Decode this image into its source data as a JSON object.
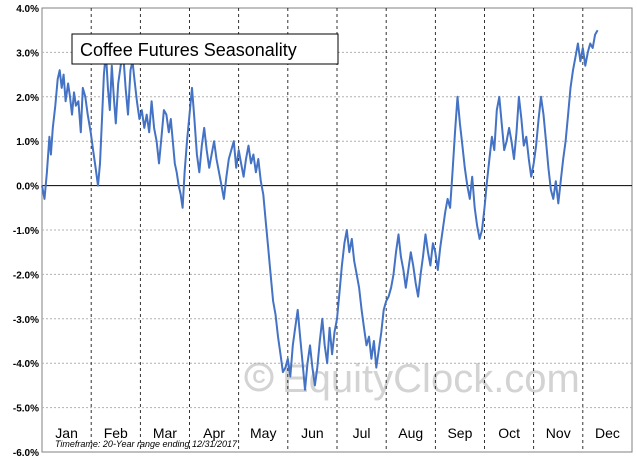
{
  "chart_data": {
    "type": "line",
    "title": "Coffee Futures Seasonality",
    "xlabel": "",
    "ylabel": "",
    "ylim": [
      -6.0,
      4.0
    ],
    "y_ticks": [
      "4.0%",
      "3.0%",
      "2.0%",
      "1.0%",
      "0.0%",
      "-1.0%",
      "-2.0%",
      "-3.0%",
      "-4.0%",
      "-5.0%",
      "-6.0%"
    ],
    "y_tick_values": [
      4,
      3,
      2,
      1,
      0,
      -1,
      -2,
      -3,
      -4,
      -5,
      -6
    ],
    "categories": [
      "Jan",
      "Feb",
      "Mar",
      "Apr",
      "May",
      "Jun",
      "Jul",
      "Aug",
      "Sep",
      "Oct",
      "Nov",
      "Dec"
    ],
    "x_unit": "month (0 = Jan 1, 12 = Dec 31)",
    "grid": true,
    "series": [
      {
        "color": "#4472c4",
        "points": [
          [
            0.0,
            0.0
          ],
          [
            0.05,
            -0.3
          ],
          [
            0.1,
            0.3
          ],
          [
            0.15,
            1.1
          ],
          [
            0.18,
            0.7
          ],
          [
            0.22,
            1.3
          ],
          [
            0.27,
            1.8
          ],
          [
            0.32,
            2.4
          ],
          [
            0.36,
            2.6
          ],
          [
            0.4,
            2.2
          ],
          [
            0.44,
            2.5
          ],
          [
            0.48,
            1.9
          ],
          [
            0.53,
            2.3
          ],
          [
            0.57,
            2.0
          ],
          [
            0.61,
            1.6
          ],
          [
            0.65,
            2.1
          ],
          [
            0.69,
            1.8
          ],
          [
            0.74,
            1.9
          ],
          [
            0.79,
            1.2
          ],
          [
            0.83,
            2.2
          ],
          [
            0.88,
            2.0
          ],
          [
            0.93,
            1.6
          ],
          [
            0.99,
            1.2
          ],
          [
            1.04,
            0.8
          ],
          [
            1.09,
            0.4
          ],
          [
            1.14,
            0.0
          ],
          [
            1.18,
            0.5
          ],
          [
            1.22,
            1.5
          ],
          [
            1.26,
            2.5
          ],
          [
            1.3,
            3.0
          ],
          [
            1.34,
            2.2
          ],
          [
            1.38,
            1.7
          ],
          [
            1.42,
            2.7
          ],
          [
            1.46,
            2.0
          ],
          [
            1.5,
            1.4
          ],
          [
            1.55,
            2.3
          ],
          [
            1.6,
            2.7
          ],
          [
            1.65,
            3.0
          ],
          [
            1.7,
            2.2
          ],
          [
            1.75,
            1.6
          ],
          [
            1.8,
            2.6
          ],
          [
            1.84,
            2.8
          ],
          [
            1.88,
            2.4
          ],
          [
            1.93,
            1.9
          ],
          [
            1.98,
            1.5
          ],
          [
            2.03,
            1.7
          ],
          [
            2.08,
            1.3
          ],
          [
            2.13,
            1.6
          ],
          [
            2.18,
            1.2
          ],
          [
            2.23,
            1.9
          ],
          [
            2.28,
            1.3
          ],
          [
            2.33,
            1.0
          ],
          [
            2.38,
            0.5
          ],
          [
            2.43,
            1.1
          ],
          [
            2.48,
            1.7
          ],
          [
            2.53,
            1.6
          ],
          [
            2.58,
            1.2
          ],
          [
            2.62,
            1.5
          ],
          [
            2.66,
            1.0
          ],
          [
            2.7,
            0.5
          ],
          [
            2.74,
            0.3
          ],
          [
            2.78,
            0.0
          ],
          [
            2.82,
            -0.2
          ],
          [
            2.86,
            -0.5
          ],
          [
            2.9,
            0.3
          ],
          [
            2.95,
            1.0
          ],
          [
            3.0,
            1.6
          ],
          [
            3.05,
            2.2
          ],
          [
            3.1,
            1.5
          ],
          [
            3.15,
            0.7
          ],
          [
            3.2,
            0.3
          ],
          [
            3.25,
            0.9
          ],
          [
            3.3,
            1.3
          ],
          [
            3.35,
            0.8
          ],
          [
            3.4,
            0.4
          ],
          [
            3.45,
            0.7
          ],
          [
            3.5,
            1.0
          ],
          [
            3.55,
            0.6
          ],
          [
            3.6,
            0.3
          ],
          [
            3.65,
            0.0
          ],
          [
            3.7,
            -0.3
          ],
          [
            3.75,
            0.2
          ],
          [
            3.8,
            0.6
          ],
          [
            3.85,
            0.8
          ],
          [
            3.9,
            1.0
          ],
          [
            3.95,
            0.4
          ],
          [
            4.0,
            0.8
          ],
          [
            4.05,
            0.5
          ],
          [
            4.1,
            0.2
          ],
          [
            4.15,
            0.6
          ],
          [
            4.2,
            0.9
          ],
          [
            4.25,
            0.5
          ],
          [
            4.3,
            0.7
          ],
          [
            4.35,
            0.3
          ],
          [
            4.4,
            0.6
          ],
          [
            4.45,
            0.1
          ],
          [
            4.5,
            -0.2
          ],
          [
            4.55,
            -0.8
          ],
          [
            4.6,
            -1.4
          ],
          [
            4.65,
            -2.0
          ],
          [
            4.7,
            -2.6
          ],
          [
            4.75,
            -2.9
          ],
          [
            4.8,
            -3.4
          ],
          [
            4.85,
            -3.8
          ],
          [
            4.9,
            -4.2
          ],
          [
            4.95,
            -4.1
          ],
          [
            5.0,
            -3.9
          ],
          [
            5.05,
            -4.3
          ],
          [
            5.1,
            -3.6
          ],
          [
            5.15,
            -3.2
          ],
          [
            5.2,
            -2.8
          ],
          [
            5.25,
            -3.4
          ],
          [
            5.3,
            -4.0
          ],
          [
            5.35,
            -4.6
          ],
          [
            5.4,
            -4.0
          ],
          [
            5.45,
            -3.6
          ],
          [
            5.5,
            -4.1
          ],
          [
            5.55,
            -4.5
          ],
          [
            5.6,
            -4.1
          ],
          [
            5.65,
            -3.5
          ],
          [
            5.7,
            -3.0
          ],
          [
            5.75,
            -3.6
          ],
          [
            5.8,
            -4.0
          ],
          [
            5.85,
            -3.2
          ],
          [
            5.9,
            -3.8
          ],
          [
            5.95,
            -3.3
          ],
          [
            6.0,
            -3.0
          ],
          [
            6.05,
            -2.4
          ],
          [
            6.1,
            -1.8
          ],
          [
            6.15,
            -1.3
          ],
          [
            6.2,
            -1.0
          ],
          [
            6.25,
            -1.5
          ],
          [
            6.3,
            -1.2
          ],
          [
            6.35,
            -1.7
          ],
          [
            6.4,
            -2.0
          ],
          [
            6.45,
            -2.3
          ],
          [
            6.5,
            -2.8
          ],
          [
            6.55,
            -3.2
          ],
          [
            6.6,
            -3.6
          ],
          [
            6.65,
            -3.4
          ],
          [
            6.7,
            -3.9
          ],
          [
            6.75,
            -3.5
          ],
          [
            6.8,
            -4.1
          ],
          [
            6.85,
            -3.7
          ],
          [
            6.9,
            -3.3
          ],
          [
            6.95,
            -2.8
          ],
          [
            7.0,
            -2.6
          ],
          [
            7.05,
            -2.5
          ],
          [
            7.1,
            -2.3
          ],
          [
            7.15,
            -2.0
          ],
          [
            7.2,
            -1.5
          ],
          [
            7.25,
            -1.1
          ],
          [
            7.3,
            -1.6
          ],
          [
            7.35,
            -1.9
          ],
          [
            7.4,
            -2.3
          ],
          [
            7.45,
            -1.9
          ],
          [
            7.5,
            -1.5
          ],
          [
            7.55,
            -1.8
          ],
          [
            7.6,
            -2.2
          ],
          [
            7.65,
            -2.5
          ],
          [
            7.7,
            -2.0
          ],
          [
            7.75,
            -1.6
          ],
          [
            7.8,
            -1.1
          ],
          [
            7.85,
            -1.5
          ],
          [
            7.9,
            -1.8
          ],
          [
            7.95,
            -1.3
          ],
          [
            8.0,
            -1.5
          ],
          [
            8.05,
            -1.9
          ],
          [
            8.1,
            -1.4
          ],
          [
            8.15,
            -1.0
          ],
          [
            8.2,
            -0.6
          ],
          [
            8.25,
            -0.3
          ],
          [
            8.3,
            -0.5
          ],
          [
            8.35,
            0.3
          ],
          [
            8.4,
            1.2
          ],
          [
            8.45,
            2.0
          ],
          [
            8.5,
            1.4
          ],
          [
            8.55,
            0.9
          ],
          [
            8.6,
            0.4
          ],
          [
            8.65,
            0.0
          ],
          [
            8.7,
            -0.3
          ],
          [
            8.75,
            0.2
          ],
          [
            8.8,
            -0.5
          ],
          [
            8.85,
            -0.9
          ],
          [
            8.9,
            -1.2
          ],
          [
            8.95,
            -1.0
          ],
          [
            9.0,
            -0.5
          ],
          [
            9.05,
            0.1
          ],
          [
            9.1,
            0.6
          ],
          [
            9.15,
            1.1
          ],
          [
            9.2,
            0.8
          ],
          [
            9.25,
            1.7
          ],
          [
            9.3,
            2.0
          ],
          [
            9.35,
            1.4
          ],
          [
            9.4,
            0.8
          ],
          [
            9.45,
            1.0
          ],
          [
            9.5,
            1.3
          ],
          [
            9.55,
            1.0
          ],
          [
            9.6,
            0.6
          ],
          [
            9.65,
            1.2
          ],
          [
            9.7,
            2.0
          ],
          [
            9.75,
            1.5
          ],
          [
            9.8,
            0.9
          ],
          [
            9.85,
            1.1
          ],
          [
            9.9,
            0.6
          ],
          [
            9.95,
            0.2
          ],
          [
            10.0,
            0.5
          ],
          [
            10.05,
            0.9
          ],
          [
            10.1,
            1.5
          ],
          [
            10.15,
            2.0
          ],
          [
            10.2,
            1.6
          ],
          [
            10.25,
            1.0
          ],
          [
            10.3,
            0.4
          ],
          [
            10.35,
            -0.1
          ],
          [
            10.4,
            -0.3
          ],
          [
            10.45,
            0.1
          ],
          [
            10.5,
            -0.4
          ],
          [
            10.55,
            0.1
          ],
          [
            10.6,
            0.6
          ],
          [
            10.65,
            1.0
          ],
          [
            10.7,
            1.6
          ],
          [
            10.75,
            2.2
          ],
          [
            10.8,
            2.6
          ],
          [
            10.85,
            2.9
          ],
          [
            10.9,
            3.2
          ],
          [
            10.95,
            2.8
          ],
          [
            11.0,
            3.1
          ],
          [
            11.05,
            2.7
          ],
          [
            11.1,
            3.0
          ],
          [
            11.15,
            3.2
          ],
          [
            11.2,
            3.1
          ],
          [
            11.25,
            3.4
          ],
          [
            11.3,
            3.5
          ]
        ]
      }
    ],
    "footnote": "Timeframe:  20-Year range ending 12/31/2017",
    "watermark": "EquityClock.com"
  }
}
